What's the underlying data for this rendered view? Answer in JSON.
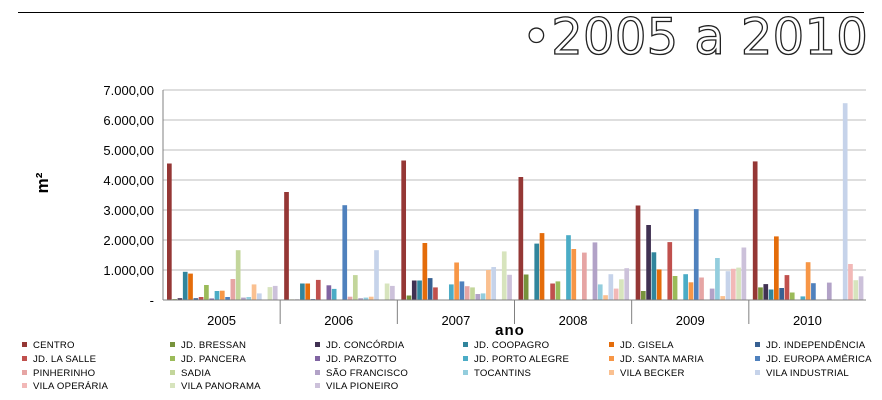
{
  "slide": {
    "title": "•2005 a 2010"
  },
  "chart_data": {
    "type": "bar",
    "categories": [
      "2005",
      "2006",
      "2007",
      "2008",
      "2009",
      "2010"
    ],
    "ylim": [
      0,
      7000
    ],
    "yticks": [
      "7.000,00",
      "6.000,00",
      "5.000,00",
      "4.000,00",
      "3.000,00",
      "2.000,00",
      "1.000,00",
      "-"
    ],
    "xlabel": "ano",
    "ylabel": "m²",
    "grid": true,
    "legend_position": "bottom",
    "series": [
      {
        "name": "CENTRO",
        "color": "#953735",
        "values": [
          4550,
          3600,
          4650,
          4100,
          3150,
          4620
        ]
      },
      {
        "name": "JD. BRESSAN",
        "color": "#77933c",
        "values": [
          30,
          20,
          150,
          850,
          300,
          420
        ]
      },
      {
        "name": "JD. CONCÓRDIA",
        "color": "#403152",
        "values": [
          60,
          20,
          650,
          0,
          2500,
          530
        ]
      },
      {
        "name": "JD. COOPAGRO",
        "color": "#31859c",
        "values": [
          940,
          550,
          650,
          1880,
          1590,
          350
        ]
      },
      {
        "name": "JD. GISELA",
        "color": "#e46c0a",
        "values": [
          880,
          550,
          1900,
          2230,
          1020,
          2120
        ]
      },
      {
        "name": "JD. INDEPENDÊNCIA",
        "color": "#376092",
        "values": [
          60,
          30,
          730,
          0,
          0,
          400
        ]
      },
      {
        "name": "JD. LA SALLE",
        "color": "#c0504d",
        "values": [
          100,
          670,
          420,
          550,
          1930,
          830
        ]
      },
      {
        "name": "JD. PANCERA",
        "color": "#9bbb59",
        "values": [
          500,
          0,
          0,
          620,
          800,
          250
        ]
      },
      {
        "name": "JD. PARZOTTO",
        "color": "#8064a2",
        "values": [
          50,
          490,
          0,
          0,
          0,
          0
        ]
      },
      {
        "name": "JD. PORTO ALEGRE",
        "color": "#4bacc6",
        "values": [
          300,
          370,
          520,
          2160,
          860,
          120
        ]
      },
      {
        "name": "JD. SANTA MARIA",
        "color": "#f79646",
        "values": [
          310,
          0,
          1250,
          1700,
          590,
          1260
        ]
      },
      {
        "name": "JD. EUROPA AMÉRICA",
        "color": "#4f81bd",
        "values": [
          100,
          3160,
          620,
          0,
          3030,
          560
        ]
      },
      {
        "name": "PINHERINHO",
        "color": "#e6a5a4",
        "values": [
          700,
          110,
          460,
          1580,
          750,
          0
        ]
      },
      {
        "name": "SADIA",
        "color": "#c3d69b",
        "values": [
          1660,
          830,
          420,
          0,
          0,
          0
        ]
      },
      {
        "name": "SÃO FRANCISCO",
        "color": "#b2a2c7",
        "values": [
          80,
          60,
          200,
          1920,
          380,
          580
        ]
      },
      {
        "name": "TOCANTINS",
        "color": "#93cddd",
        "values": [
          100,
          80,
          220,
          520,
          1400,
          0
        ]
      },
      {
        "name": "VILA BECKER",
        "color": "#fac090",
        "values": [
          520,
          110,
          1000,
          160,
          130,
          0
        ]
      },
      {
        "name": "VILA INDUSTRIAL",
        "color": "#c6d3ea",
        "values": [
          220,
          1660,
          1100,
          860,
          960,
          6560
        ]
      },
      {
        "name": "VILA OPERÁRIA",
        "color": "#f2b8b7",
        "values": [
          0,
          0,
          0,
          380,
          1040,
          1200
        ]
      },
      {
        "name": "VILA PANORAMA",
        "color": "#d7e4bd",
        "values": [
          430,
          550,
          1620,
          690,
          1080,
          660
        ]
      },
      {
        "name": "VILA PIONEIRO",
        "color": "#ccc1da",
        "values": [
          470,
          470,
          840,
          1060,
          1750,
          790
        ]
      }
    ]
  }
}
